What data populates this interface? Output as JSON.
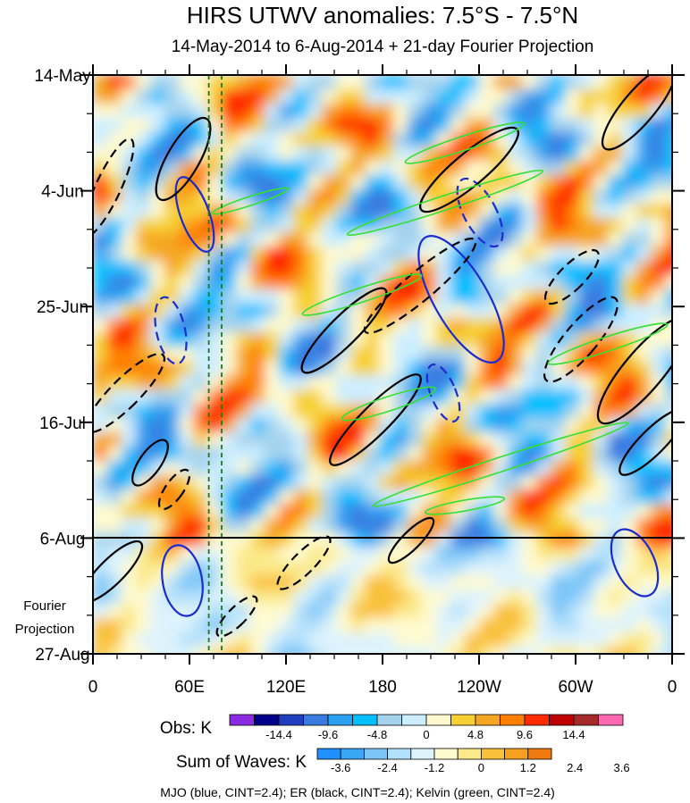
{
  "chart_data": {
    "type": "heatmap",
    "title": "HIRS UTWV anomalies: 7.5°S - 7.5°N",
    "subtitle": "14-May-2014 to 6-Aug-2014 + 21-day Fourier Projection",
    "x_ticks": [
      "0",
      "60E",
      "120E",
      "180",
      "120W",
      "60W",
      "0"
    ],
    "x_range_deg_east": [
      0,
      360
    ],
    "y_ticks": [
      "14-May",
      "4-Jun",
      "25-Jun",
      "16-Jul",
      "6-Aug",
      "27-Aug"
    ],
    "y_range_days_from_14May": [
      0,
      105
    ],
    "observation_end_day": 84,
    "projection_label": [
      "Fourier",
      "Projection"
    ],
    "reference_lines_lon_deg": [
      72,
      80
    ],
    "obs_colorbar": {
      "label": "Obs: K",
      "tick_labels": [
        "-14.4",
        "-9.6",
        "-4.8",
        "0",
        "4.8",
        "9.6",
        "14.4"
      ],
      "colors": [
        "#8a2be2",
        "#00008b",
        "#1f3fbf",
        "#3a7be0",
        "#2b9ff0",
        "#00bfff",
        "#a4d3ee",
        "#cceeff",
        "#fffacd",
        "#f7d134",
        "#f5a623",
        "#ff7f00",
        "#ff2a00",
        "#c00000",
        "#a52a2a",
        "#ff69b4"
      ]
    },
    "waves_colorbar": {
      "label": "Sum of Waves: K",
      "tick_labels": [
        "-3.6",
        "-2.4",
        "-1.2",
        "0",
        "1.2",
        "2.4",
        "3.6"
      ],
      "colors": [
        "#1e90ff",
        "#3aa7f5",
        "#7cc6f7",
        "#b3e0fb",
        "#ddf3fd",
        "#fffbd0",
        "#fbe98a",
        "#f9c13a",
        "#f5a021",
        "#f07a10"
      ]
    },
    "wave_legend": "MJO (blue, CINT=2.4); ER (black, CINT=2.4); Kelvin (green, CINT=2.4)",
    "contour_interval_K": 2.4
  }
}
